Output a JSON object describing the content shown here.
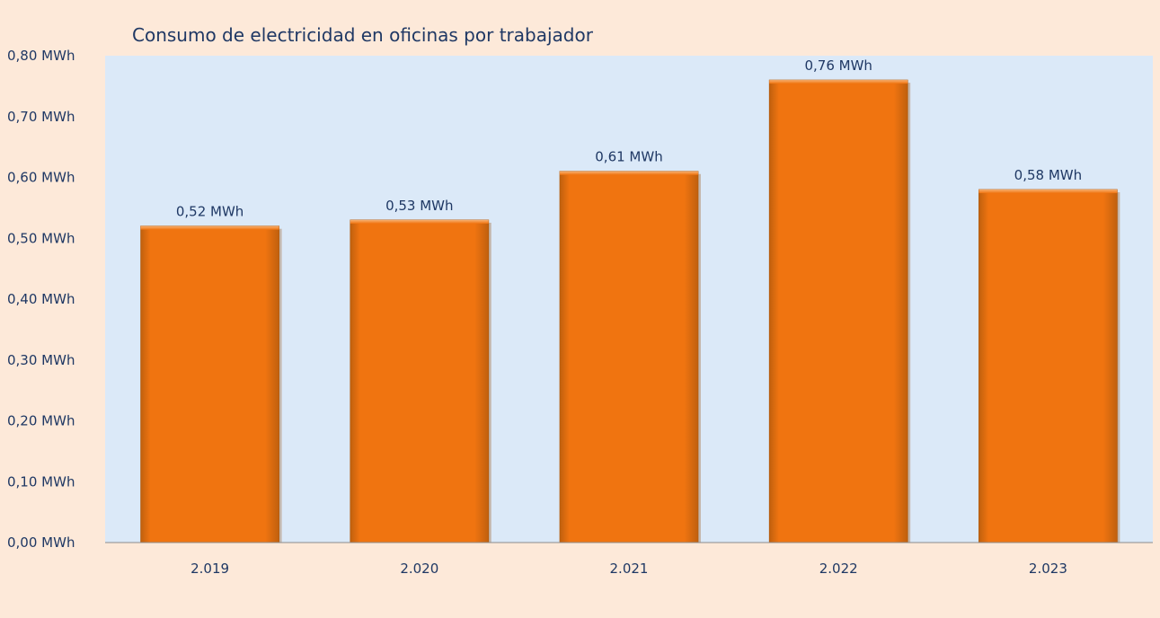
{
  "chart_data": {
    "type": "bar",
    "title": "Consumo de electricidad en oficinas por trabajador",
    "xlabel": "",
    "ylabel": "",
    "categories": [
      "2.019",
      "2.020",
      "2.021",
      "2.022",
      "2.023"
    ],
    "values": [
      0.52,
      0.53,
      0.61,
      0.76,
      0.58
    ],
    "value_labels": [
      "0,52 MWh",
      "0,53 MWh",
      "0,61 MWh",
      "0,76 MWh",
      "0,58 MWh"
    ],
    "ylim": [
      0,
      0.8
    ],
    "y_ticks": [
      0,
      0.1,
      0.2,
      0.3,
      0.4,
      0.5,
      0.6,
      0.7,
      0.8
    ],
    "y_tick_labels": [
      "0,00 MWh",
      "0,10 MWh",
      "0,20 MWh",
      "0,30 MWh",
      "0,40 MWh",
      "0,50 MWh",
      "0,60 MWh",
      "0,70 MWh",
      "0,80 MWh"
    ],
    "grid": false,
    "legend": "none",
    "colors": {
      "bar": "#f07410",
      "bar_edge": "#b35a0c",
      "bar_highlight": "#f8b070",
      "plot_background": "#dbe9f8",
      "page_background": "#fde9d9",
      "text": "#1f3864",
      "axis": "#8c8c8c"
    }
  }
}
